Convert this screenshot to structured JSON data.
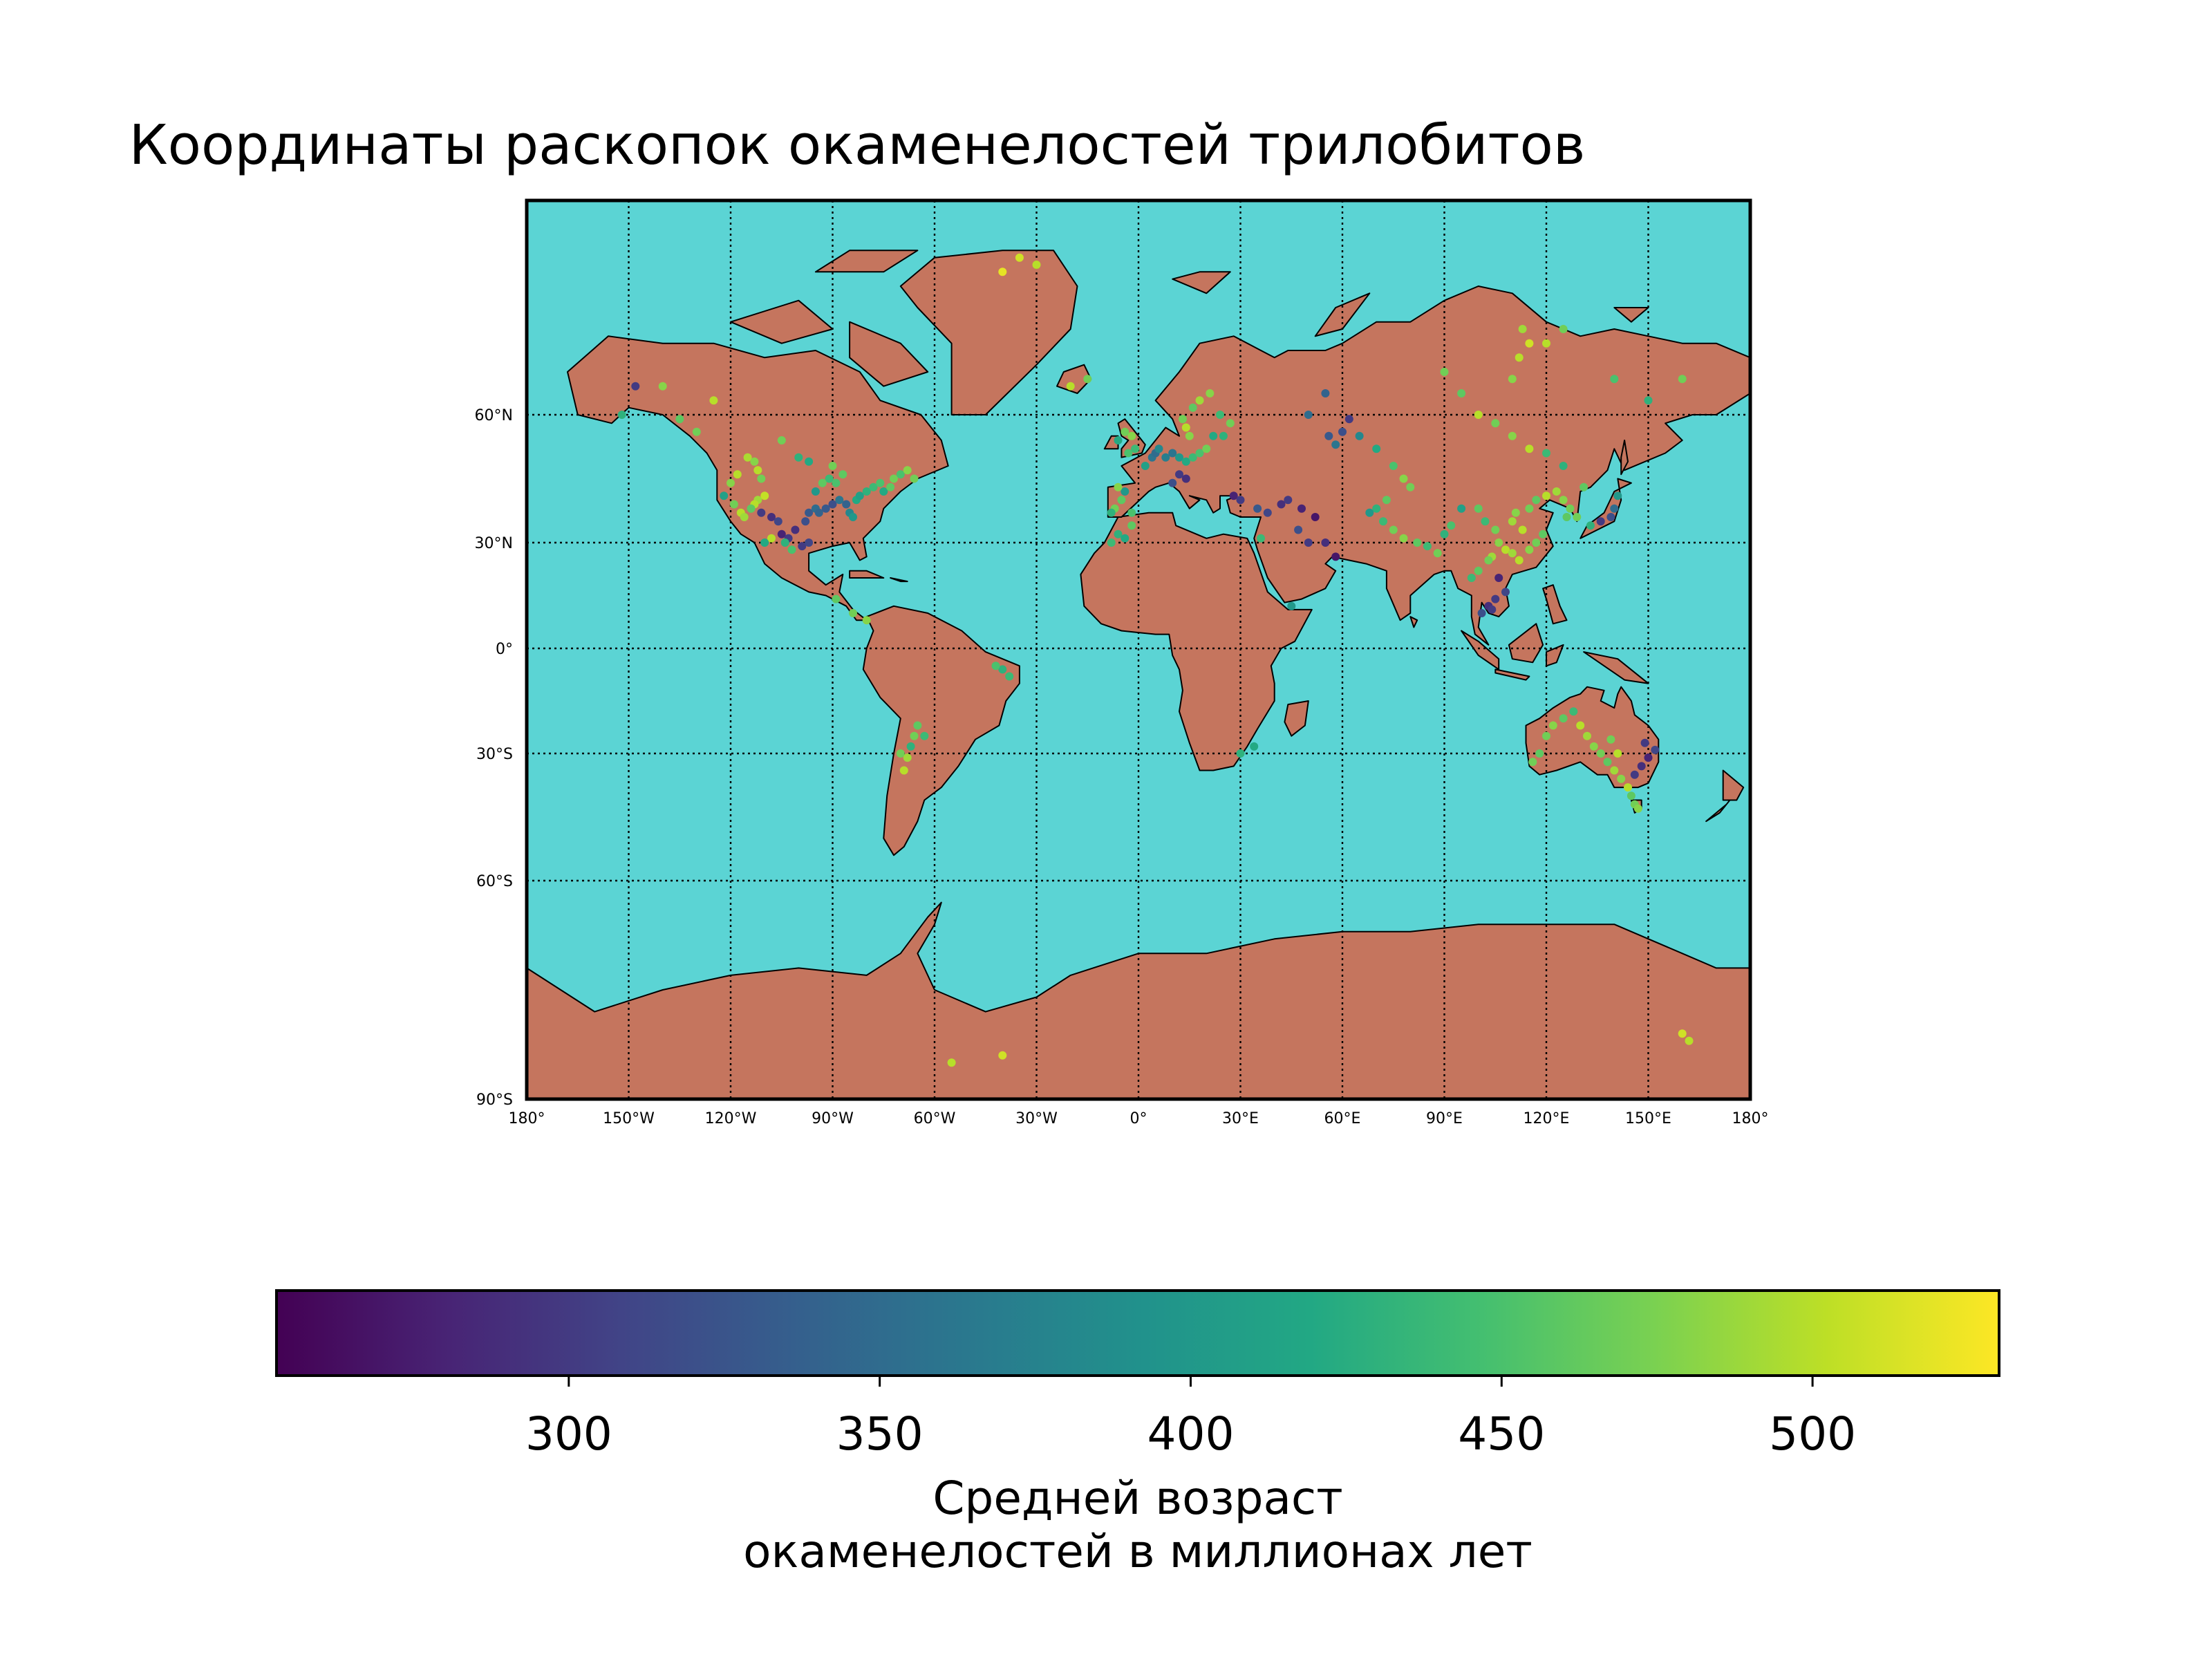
{
  "title": "Координаты раскопок окаменелостей трилобитов",
  "map": {
    "projection": "mercator",
    "lon_range": [
      -180,
      180
    ],
    "lat_range": [
      -90,
      90
    ],
    "ocean_color": "#5bd4d4",
    "land_color": "#c5755e",
    "graticule": "dotted",
    "lat_ticks": [
      {
        "value": 60,
        "label": "60°N"
      },
      {
        "value": 30,
        "label": "30°N"
      },
      {
        "value": 0,
        "label": "0°"
      },
      {
        "value": -30,
        "label": "30°S"
      },
      {
        "value": -60,
        "label": "60°S"
      },
      {
        "value": -90,
        "label": "90°S"
      }
    ],
    "lon_ticks": [
      {
        "value": -180,
        "label": "180°"
      },
      {
        "value": -150,
        "label": "150°W"
      },
      {
        "value": -120,
        "label": "120°W"
      },
      {
        "value": -90,
        "label": "90°W"
      },
      {
        "value": -60,
        "label": "60°W"
      },
      {
        "value": -30,
        "label": "30°W"
      },
      {
        "value": 0,
        "label": "0°"
      },
      {
        "value": 30,
        "label": "30°E"
      },
      {
        "value": 60,
        "label": "60°E"
      },
      {
        "value": 90,
        "label": "90°E"
      },
      {
        "value": 120,
        "label": "120°E"
      },
      {
        "value": 150,
        "label": "150°E"
      },
      {
        "value": 180,
        "label": "180°"
      }
    ]
  },
  "colorbar": {
    "colormap": "viridis",
    "range": [
      253,
      530
    ],
    "ticks": [
      300,
      350,
      400,
      450,
      500
    ],
    "label_line1": "Средней возраст",
    "label_line2": "окаменелостей в миллионах лет"
  },
  "chart_data": {
    "type": "scatter",
    "x_name": "longitude",
    "y_name": "latitude",
    "color_name": "age_ma",
    "points": [
      [
        -115,
        50,
        495
      ],
      [
        -113,
        49,
        480
      ],
      [
        -112,
        47,
        500
      ],
      [
        -111,
        45,
        470
      ],
      [
        -110,
        41,
        505
      ],
      [
        -112,
        40,
        490
      ],
      [
        -113,
        39,
        500
      ],
      [
        -114,
        38,
        460
      ],
      [
        -111,
        37,
        300
      ],
      [
        -108,
        36,
        290
      ],
      [
        -106,
        35,
        310
      ],
      [
        -105,
        32,
        280
      ],
      [
        -103,
        31,
        300
      ],
      [
        -101,
        33,
        290
      ],
      [
        -98,
        35,
        320
      ],
      [
        -97,
        37,
        330
      ],
      [
        -95,
        38,
        350
      ],
      [
        -94,
        37,
        340
      ],
      [
        -92,
        38,
        330
      ],
      [
        -90,
        39,
        320
      ],
      [
        -88,
        40,
        360
      ],
      [
        -86,
        39,
        340
      ],
      [
        -85,
        37,
        380
      ],
      [
        -84,
        36,
        400
      ],
      [
        -83,
        40,
        420
      ],
      [
        -82,
        41,
        410
      ],
      [
        -80,
        42,
        430
      ],
      [
        -78,
        43,
        440
      ],
      [
        -76,
        44,
        450
      ],
      [
        -75,
        42,
        420
      ],
      [
        -73,
        43,
        460
      ],
      [
        -72,
        45,
        470
      ],
      [
        -70,
        46,
        450
      ],
      [
        -68,
        47,
        480
      ],
      [
        -66,
        45,
        470
      ],
      [
        -89,
        44,
        450
      ],
      [
        -91,
        45,
        440
      ],
      [
        -93,
        44,
        460
      ],
      [
        -95,
        42,
        400
      ],
      [
        -117,
        37,
        500
      ],
      [
        -116,
        36,
        490
      ],
      [
        -119,
        39,
        470
      ],
      [
        -122,
        41,
        410
      ],
      [
        -120,
        44,
        480
      ],
      [
        -118,
        46,
        500
      ],
      [
        -130,
        56,
        470
      ],
      [
        -135,
        59,
        460
      ],
      [
        -140,
        64,
        480
      ],
      [
        -148,
        64,
        300
      ],
      [
        -152,
        60,
        430
      ],
      [
        -125,
        62,
        500
      ],
      [
        -105,
        54,
        470
      ],
      [
        -100,
        50,
        430
      ],
      [
        -97,
        49,
        420
      ],
      [
        -90,
        48,
        470
      ],
      [
        -87,
        46,
        460
      ],
      [
        -99,
        29,
        300
      ],
      [
        -102,
        28,
        450
      ],
      [
        -97,
        30,
        310
      ],
      [
        -104,
        30,
        430
      ],
      [
        -108,
        31,
        500
      ],
      [
        -110,
        30,
        420
      ],
      [
        -80,
        8,
        480
      ],
      [
        -84,
        10,
        470
      ],
      [
        -89,
        14,
        460
      ],
      [
        -65,
        -22,
        460
      ],
      [
        -66,
        -25,
        470
      ],
      [
        -67,
        -28,
        430
      ],
      [
        -68,
        -31,
        490
      ],
      [
        -69,
        -34,
        500
      ],
      [
        -70,
        -30,
        470
      ],
      [
        -63,
        -25,
        440
      ],
      [
        -38,
        -8,
        440
      ],
      [
        -40,
        -6,
        430
      ],
      [
        -42,
        -5,
        450
      ],
      [
        -15,
        65,
        470
      ],
      [
        -20,
        64,
        500
      ],
      [
        -30,
        81,
        500
      ],
      [
        -35,
        82,
        510
      ],
      [
        -40,
        80,
        520
      ],
      [
        -5,
        40,
        460
      ],
      [
        -7,
        38,
        470
      ],
      [
        -8,
        37,
        430
      ],
      [
        -2,
        37,
        450
      ],
      [
        -4,
        42,
        400
      ],
      [
        -6,
        43,
        480
      ],
      [
        -3,
        51,
        450
      ],
      [
        -1,
        52,
        440
      ],
      [
        -2,
        55,
        480
      ],
      [
        -4,
        56,
        470
      ],
      [
        -6,
        54,
        420
      ],
      [
        2,
        48,
        410
      ],
      [
        4,
        50,
        360
      ],
      [
        5,
        51,
        350
      ],
      [
        6,
        52,
        380
      ],
      [
        8,
        50,
        370
      ],
      [
        10,
        51,
        360
      ],
      [
        12,
        50,
        400
      ],
      [
        14,
        49,
        420
      ],
      [
        16,
        50,
        440
      ],
      [
        18,
        51,
        450
      ],
      [
        20,
        52,
        470
      ],
      [
        15,
        55,
        480
      ],
      [
        14,
        57,
        500
      ],
      [
        13,
        59,
        470
      ],
      [
        16,
        61,
        460
      ],
      [
        18,
        62,
        490
      ],
      [
        21,
        63,
        480
      ],
      [
        24,
        60,
        440
      ],
      [
        27,
        58,
        470
      ],
      [
        25,
        55,
        430
      ],
      [
        22,
        55,
        420
      ],
      [
        12,
        46,
        300
      ],
      [
        14,
        45,
        290
      ],
      [
        10,
        44,
        320
      ],
      [
        28,
        41,
        280
      ],
      [
        30,
        40,
        300
      ],
      [
        35,
        38,
        330
      ],
      [
        38,
        37,
        310
      ],
      [
        42,
        39,
        290
      ],
      [
        44,
        40,
        300
      ],
      [
        48,
        38,
        280
      ],
      [
        52,
        36,
        270
      ],
      [
        55,
        30,
        290
      ],
      [
        58,
        26,
        270
      ],
      [
        50,
        30,
        300
      ],
      [
        47,
        33,
        320
      ],
      [
        36,
        31,
        440
      ],
      [
        56,
        55,
        330
      ],
      [
        58,
        53,
        360
      ],
      [
        60,
        56,
        320
      ],
      [
        62,
        59,
        300
      ],
      [
        55,
        63,
        340
      ],
      [
        50,
        60,
        350
      ],
      [
        65,
        55,
        380
      ],
      [
        70,
        52,
        420
      ],
      [
        75,
        48,
        450
      ],
      [
        78,
        45,
        480
      ],
      [
        80,
        43,
        470
      ],
      [
        73,
        40,
        460
      ],
      [
        70,
        38,
        430
      ],
      [
        68,
        37,
        400
      ],
      [
        72,
        35,
        440
      ],
      [
        75,
        33,
        470
      ],
      [
        78,
        31,
        480
      ],
      [
        82,
        30,
        460
      ],
      [
        85,
        29,
        440
      ],
      [
        88,
        27,
        470
      ],
      [
        90,
        32,
        430
      ],
      [
        92,
        34,
        450
      ],
      [
        95,
        38,
        410
      ],
      [
        100,
        38,
        460
      ],
      [
        102,
        35,
        440
      ],
      [
        105,
        33,
        470
      ],
      [
        106,
        30,
        480
      ],
      [
        108,
        28,
        500
      ],
      [
        104,
        26,
        490
      ],
      [
        103,
        25,
        470
      ],
      [
        100,
        22,
        460
      ],
      [
        98,
        20,
        440
      ],
      [
        110,
        27,
        490
      ],
      [
        112,
        25,
        500
      ],
      [
        115,
        28,
        480
      ],
      [
        117,
        30,
        470
      ],
      [
        119,
        32,
        460
      ],
      [
        113,
        33,
        500
      ],
      [
        110,
        35,
        490
      ],
      [
        111,
        37,
        480
      ],
      [
        115,
        38,
        470
      ],
      [
        117,
        40,
        460
      ],
      [
        120,
        41,
        500
      ],
      [
        123,
        42,
        490
      ],
      [
        125,
        40,
        480
      ],
      [
        127,
        38,
        470
      ],
      [
        126,
        36,
        460
      ],
      [
        129,
        36,
        470
      ],
      [
        133,
        34,
        430
      ],
      [
        136,
        35,
        300
      ],
      [
        139,
        36,
        320
      ],
      [
        140,
        38,
        350
      ],
      [
        141,
        41,
        400
      ],
      [
        131,
        43,
        460
      ],
      [
        125,
        48,
        430
      ],
      [
        120,
        51,
        440
      ],
      [
        115,
        52,
        500
      ],
      [
        110,
        55,
        480
      ],
      [
        105,
        58,
        470
      ],
      [
        100,
        60,
        500
      ],
      [
        95,
        63,
        460
      ],
      [
        90,
        66,
        470
      ],
      [
        110,
        65,
        480
      ],
      [
        112,
        68,
        500
      ],
      [
        115,
        70,
        510
      ],
      [
        113,
        72,
        490
      ],
      [
        120,
        70,
        500
      ],
      [
        125,
        72,
        470
      ],
      [
        140,
        65,
        450
      ],
      [
        150,
        62,
        430
      ],
      [
        160,
        65,
        470
      ],
      [
        108,
        16,
        310
      ],
      [
        105,
        14,
        300
      ],
      [
        103,
        12,
        290
      ],
      [
        101,
        10,
        320
      ],
      [
        104,
        11,
        300
      ],
      [
        106,
        20,
        280
      ],
      [
        120,
        -25,
        470
      ],
      [
        122,
        -22,
        480
      ],
      [
        125,
        -20,
        460
      ],
      [
        128,
        -18,
        440
      ],
      [
        130,
        -22,
        500
      ],
      [
        132,
        -25,
        490
      ],
      [
        134,
        -28,
        480
      ],
      [
        136,
        -30,
        470
      ],
      [
        138,
        -32,
        460
      ],
      [
        140,
        -34,
        490
      ],
      [
        142,
        -36,
        480
      ],
      [
        144,
        -38,
        500
      ],
      [
        146,
        -35,
        300
      ],
      [
        148,
        -33,
        290
      ],
      [
        150,
        -31,
        280
      ],
      [
        152,
        -29,
        310
      ],
      [
        149,
        -27,
        300
      ],
      [
        145,
        -40,
        460
      ],
      [
        146,
        -42,
        470
      ],
      [
        147,
        -43,
        480
      ],
      [
        141,
        -30,
        500
      ],
      [
        139,
        -26,
        470
      ],
      [
        118,
        -30,
        460
      ],
      [
        116,
        -32,
        470
      ],
      [
        -40,
        -84,
        510
      ],
      [
        -55,
        -85,
        500
      ],
      [
        160,
        -81,
        510
      ],
      [
        162,
        -82,
        500
      ],
      [
        -6,
        32,
        430
      ],
      [
        -8,
        30,
        440
      ],
      [
        -4,
        31,
        420
      ],
      [
        -2,
        34,
        460
      ],
      [
        45,
        12,
        400
      ],
      [
        34,
        -28,
        420
      ],
      [
        30,
        -30,
        430
      ]
    ]
  }
}
